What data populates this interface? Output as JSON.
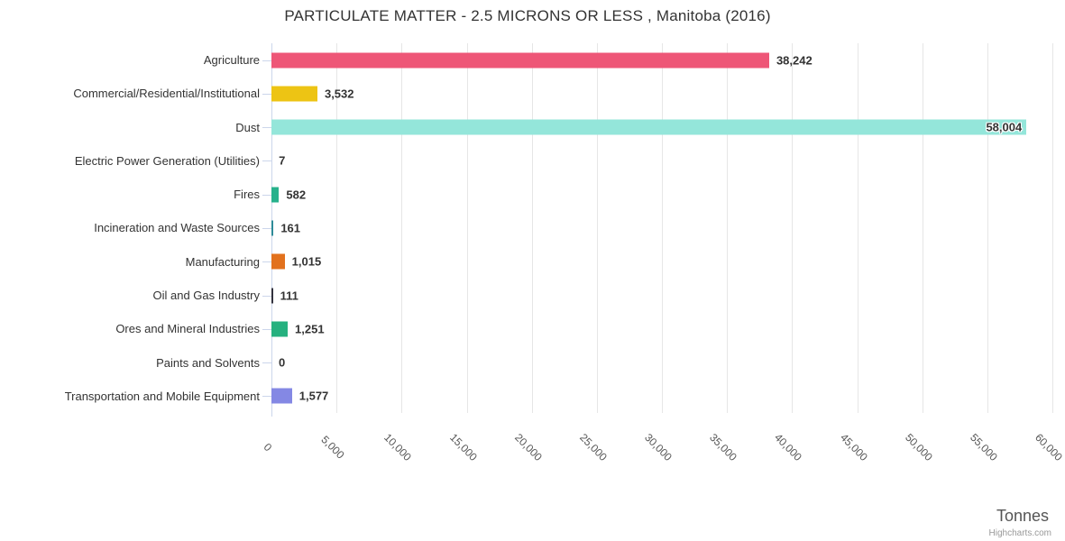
{
  "title": "PARTICULATE MATTER - 2.5 MICRONS OR LESS , Manitoba (2016)",
  "credits": "Highcharts.com",
  "chart_data": {
    "type": "bar",
    "orientation": "horizontal",
    "title": "PARTICULATE MATTER - 2.5 MICRONS OR LESS , Manitoba (2016)",
    "xlabel": "Tonnes",
    "ylabel": "",
    "xlim": [
      0,
      60000
    ],
    "grid": true,
    "legend": false,
    "categories": [
      "Agriculture",
      "Commercial/Residential/Institutional",
      "Dust",
      "Electric Power Generation (Utilities)",
      "Fires",
      "Incineration and Waste Sources",
      "Manufacturing",
      "Oil and Gas Industry",
      "Ores and Mineral Industries",
      "Paints and Solvents",
      "Transportation and Mobile Equipment"
    ],
    "values": [
      38242,
      3532,
      58004,
      7,
      582,
      161,
      1015,
      111,
      1251,
      0,
      1577
    ],
    "value_labels": [
      "38,242",
      "3,532",
      "58,004",
      "7",
      "582",
      "161",
      "1,015",
      "111",
      "1,251",
      "0",
      "1,577"
    ],
    "bar_colors": [
      "#ee5677",
      "#edc414",
      "#94e6da",
      "#cccccc",
      "#27b18c",
      "#2e8b98",
      "#e2711d",
      "#32323e",
      "#26b17f",
      "#cccccc",
      "#8488e4"
    ],
    "x_ticks": [
      0,
      5000,
      10000,
      15000,
      20000,
      25000,
      30000,
      35000,
      40000,
      45000,
      50000,
      55000,
      60000
    ],
    "x_tick_labels": [
      "0",
      "5,000",
      "10,000",
      "15,000",
      "20,000",
      "25,000",
      "30,000",
      "35,000",
      "40,000",
      "45,000",
      "50,000",
      "55,000",
      "60,000"
    ]
  },
  "style_colors": {
    "axis_line": "#ccd6eb",
    "gridline": "#e6e6e6",
    "label_text": "#333333",
    "tick_text": "#555555"
  }
}
